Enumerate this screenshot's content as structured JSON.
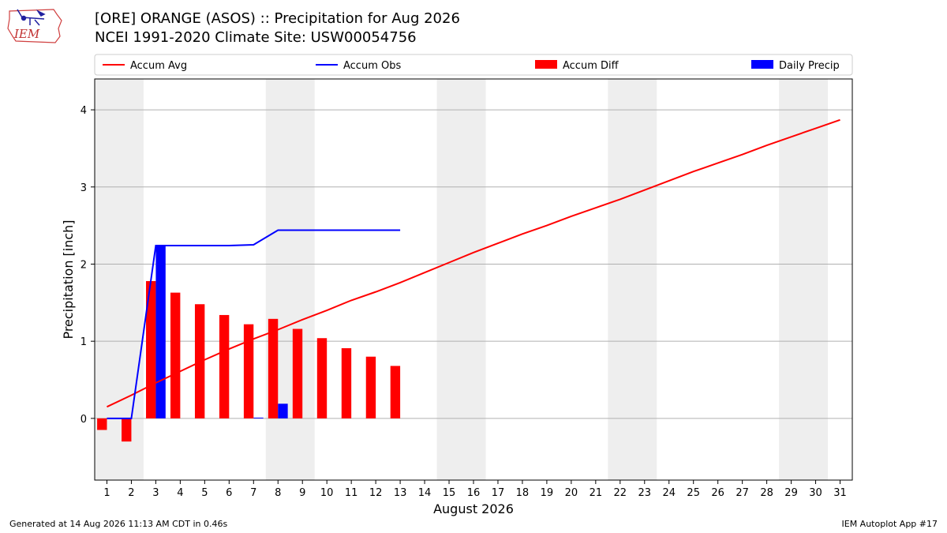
{
  "header": {
    "title_line1": "[ORE] ORANGE (ASOS) :: Precipitation for Aug 2026",
    "title_line2": "NCEI 1991-2020 Climate Site: USW00054756",
    "logo_text": "IEM"
  },
  "footer": {
    "generated": "Generated at 14 Aug 2026 11:13 AM CDT in 0.46s",
    "app": "IEM Autoplot App #17"
  },
  "colors": {
    "avg": "#ff0000",
    "obs": "#0000ff",
    "diff": "#ff0000",
    "daily": "#0000ff",
    "weekend_band": "#eeeeee",
    "grid": "#b0b0b0"
  },
  "chart_data": {
    "type": "bar",
    "xlabel": "August 2026",
    "ylabel": "Precipitation [inch]",
    "xlim": [
      0.5,
      31.5
    ],
    "ylim": [
      -0.8,
      4.4
    ],
    "yticks": [
      0,
      1,
      2,
      3,
      4
    ],
    "grid": "y",
    "legend_position": "top",
    "days": [
      1,
      2,
      3,
      4,
      5,
      6,
      7,
      8,
      9,
      10,
      11,
      12,
      13,
      14,
      15,
      16,
      17,
      18,
      19,
      20,
      21,
      22,
      23,
      24,
      25,
      26,
      27,
      28,
      29,
      30,
      31
    ],
    "shaded_day_spans": [
      [
        1,
        2
      ],
      [
        8,
        9
      ],
      [
        15,
        16
      ],
      [
        22,
        23
      ],
      [
        29,
        30
      ]
    ],
    "series": [
      {
        "name": "Accum Avg",
        "kind": "line",
        "color": "#ff0000",
        "x": [
          1,
          2,
          3,
          4,
          5,
          6,
          7,
          8,
          9,
          10,
          11,
          12,
          13,
          14,
          15,
          16,
          17,
          18,
          19,
          20,
          21,
          22,
          23,
          24,
          25,
          26,
          27,
          28,
          29,
          30,
          31
        ],
        "values": [
          0.15,
          0.3,
          0.46,
          0.61,
          0.76,
          0.9,
          1.03,
          1.15,
          1.28,
          1.4,
          1.53,
          1.64,
          1.76,
          1.89,
          2.02,
          2.15,
          2.27,
          2.39,
          2.5,
          2.62,
          2.73,
          2.84,
          2.96,
          3.08,
          3.2,
          3.31,
          3.42,
          3.54,
          3.65,
          3.76,
          3.87
        ]
      },
      {
        "name": "Accum Obs",
        "kind": "line",
        "color": "#0000ff",
        "x": [
          1,
          2,
          3,
          4,
          5,
          6,
          7,
          8,
          9,
          10,
          11,
          12,
          13
        ],
        "values": [
          0.0,
          0.0,
          2.24,
          2.24,
          2.24,
          2.24,
          2.25,
          2.44,
          2.44,
          2.44,
          2.44,
          2.44,
          2.44
        ]
      },
      {
        "name": "Accum Diff",
        "kind": "bar",
        "color": "#ff0000",
        "x": [
          1,
          2,
          3,
          4,
          5,
          6,
          7,
          8,
          9,
          10,
          11,
          12,
          13
        ],
        "values": [
          -0.15,
          -0.3,
          1.78,
          1.63,
          1.48,
          1.34,
          1.22,
          1.29,
          1.16,
          1.04,
          0.91,
          0.8,
          0.68
        ]
      },
      {
        "name": "Daily Precip",
        "kind": "bar",
        "color": "#0000ff",
        "x": [
          1,
          2,
          3,
          4,
          5,
          6,
          7,
          8,
          9,
          10,
          11,
          12,
          13
        ],
        "values": [
          0.0,
          0.0,
          2.24,
          0.0,
          0.0,
          0.0,
          0.01,
          0.19,
          0.0,
          0.0,
          0.0,
          0.0,
          0.0
        ]
      }
    ]
  }
}
